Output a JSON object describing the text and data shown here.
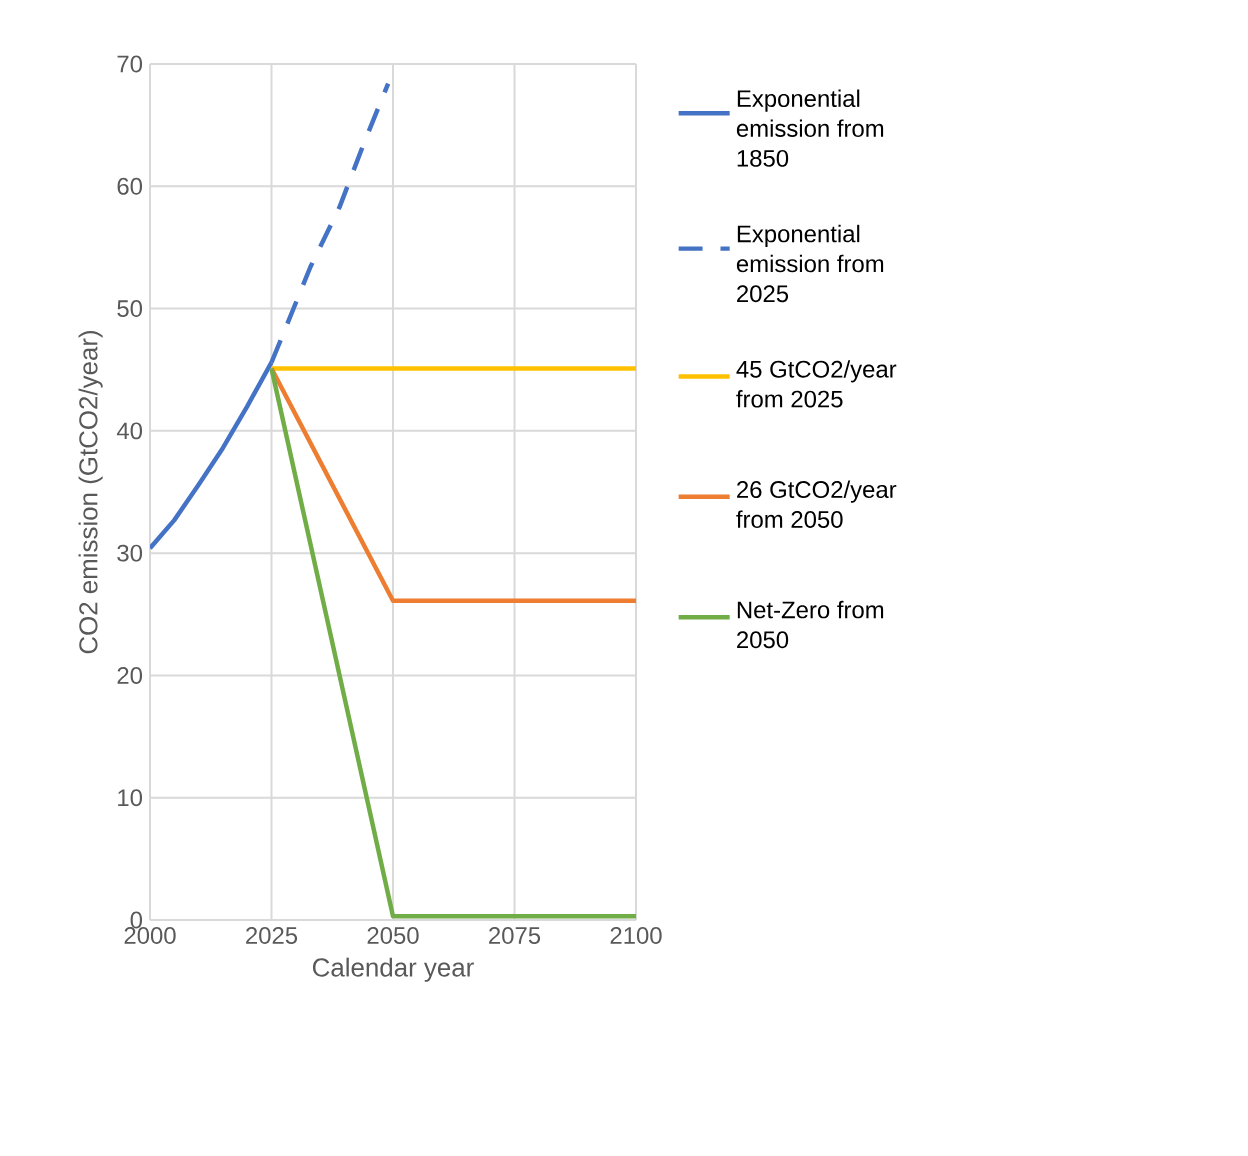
{
  "chart_data": {
    "type": "line",
    "xlabel": "Calendar year",
    "ylabel": "CO2 emission (GtCO2/year)",
    "xlim": [
      2000,
      2100
    ],
    "xticks": [
      2000,
      2025,
      2050,
      2075,
      2100
    ],
    "ylim": [
      0,
      70
    ],
    "yticks": [
      0,
      10,
      20,
      30,
      40,
      50,
      60,
      70
    ],
    "grid": true,
    "legend": "right",
    "series": [
      {
        "name": "Exponential emission from 1850",
        "color": "#4472c4",
        "line_style": "solid",
        "x": [
          2000,
          2005,
          2010,
          2015,
          2020,
          2025
        ],
        "values": [
          30.4,
          32.7,
          35.6,
          38.6,
          42.0,
          45.6
        ]
      },
      {
        "name": "Exponential emission from 2025",
        "color": "#4472c4",
        "line_style": "dashed",
        "x": [
          2025,
          2028,
          2033,
          2039,
          2044,
          2049
        ],
        "values": [
          45.6,
          48.5,
          53.4,
          58.3,
          63.5,
          68.4
        ]
      },
      {
        "name": "45 GtCO2/year from 2025",
        "color": "#ffc000",
        "line_style": "solid",
        "x": [
          2025,
          2100
        ],
        "values": [
          45.1,
          45.1
        ]
      },
      {
        "name": "26 GtCO2/year from 2050",
        "color": "#ed7d31",
        "line_style": "solid",
        "x": [
          2025,
          2050,
          2100
        ],
        "values": [
          45.1,
          26.1,
          26.1
        ]
      },
      {
        "name": "Net-Zero from 2050",
        "color": "#70ad47",
        "line_style": "solid",
        "x": [
          2025,
          2050,
          2100
        ],
        "values": [
          45.1,
          0.3,
          0.3
        ]
      }
    ]
  }
}
